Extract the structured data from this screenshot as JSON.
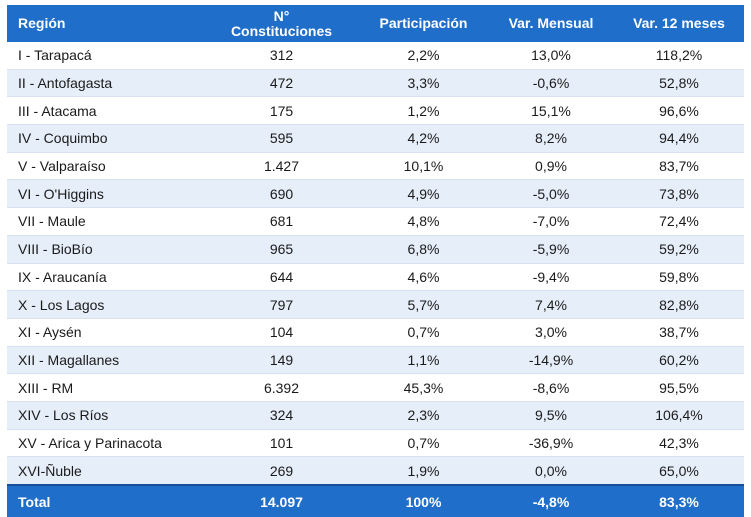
{
  "headers": {
    "region": "Región",
    "constituciones_line1": "N°",
    "constituciones_line2": "Constituciones",
    "participacion": "Participación",
    "var_mensual": "Var. Mensual",
    "var_12": "Var. 12 meses"
  },
  "rows": [
    {
      "region": "I - Tarapacá",
      "n": "312",
      "part": "2,2%",
      "mens": "13,0%",
      "anual": "118,2%"
    },
    {
      "region": "II - Antofagasta",
      "n": "472",
      "part": "3,3%",
      "mens": "-0,6%",
      "anual": "52,8%"
    },
    {
      "region": "III - Atacama",
      "n": "175",
      "part": "1,2%",
      "mens": "15,1%",
      "anual": "96,6%"
    },
    {
      "region": "IV - Coquimbo",
      "n": "595",
      "part": "4,2%",
      "mens": "8,2%",
      "anual": "94,4%"
    },
    {
      "region": "V - Valparaíso",
      "n": "1.427",
      "part": "10,1%",
      "mens": "0,9%",
      "anual": "83,7%"
    },
    {
      "region": "VI - O'Higgins",
      "n": "690",
      "part": "4,9%",
      "mens": "-5,0%",
      "anual": "73,8%"
    },
    {
      "region": "VII - Maule",
      "n": "681",
      "part": "4,8%",
      "mens": "-7,0%",
      "anual": "72,4%"
    },
    {
      "region": "VIII - BioBío",
      "n": "965",
      "part": "6,8%",
      "mens": "-5,9%",
      "anual": "59,2%"
    },
    {
      "region": "IX - Araucanía",
      "n": "644",
      "part": "4,6%",
      "mens": "-9,4%",
      "anual": "59,8%"
    },
    {
      "region": "X - Los Lagos",
      "n": "797",
      "part": "5,7%",
      "mens": "7,4%",
      "anual": "82,8%"
    },
    {
      "region": "XI - Aysén",
      "n": "104",
      "part": "0,7%",
      "mens": "3,0%",
      "anual": "38,7%"
    },
    {
      "region": "XII - Magallanes",
      "n": "149",
      "part": "1,1%",
      "mens": "-14,9%",
      "anual": "60,2%"
    },
    {
      "region": "XIII - RM",
      "n": "6.392",
      "part": "45,3%",
      "mens": "-8,6%",
      "anual": "95,5%"
    },
    {
      "region": "XIV - Los Ríos",
      "n": "324",
      "part": "2,3%",
      "mens": "9,5%",
      "anual": "106,4%"
    },
    {
      "region": "XV - Arica y Parinacota",
      "n": "101",
      "part": "0,7%",
      "mens": "-36,9%",
      "anual": "42,3%"
    },
    {
      "region": "XVI-Ñuble",
      "n": "269",
      "part": "1,9%",
      "mens": "0,0%",
      "anual": "65,0%"
    }
  ],
  "total": {
    "label": "Total",
    "n": "14.097",
    "part": "100%",
    "mens": "-4,8%",
    "anual": "83,3%"
  },
  "colors": {
    "header_bg": "#1f6ec9",
    "stripe_bg": "#e6eef9"
  }
}
